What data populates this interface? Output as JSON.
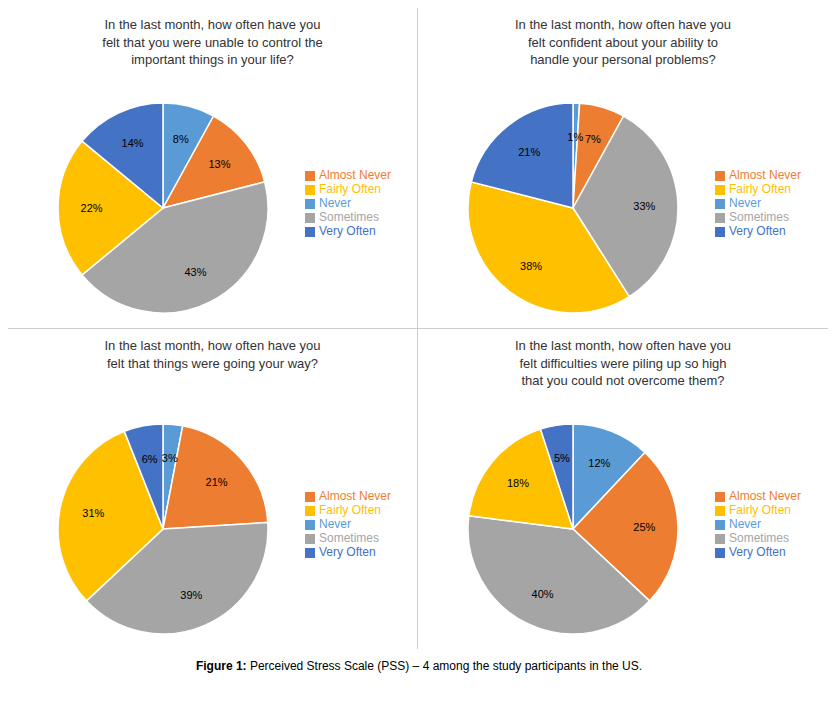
{
  "chart_data": [
    {
      "type": "pie",
      "title": "In the last month,  how often have you\nfelt that you were unable to control the\nimportant things in your life?",
      "categories": [
        "Never",
        "Almost Never",
        "Sometimes",
        "Fairly Often",
        "Very Often"
      ],
      "values": [
        8,
        13,
        43,
        22,
        14
      ],
      "value_labels": [
        "8%",
        "13%",
        "43%",
        "22%",
        "14%"
      ],
      "colors": [
        "#5B9BD5",
        "#ED7D31",
        "#A5A5A5",
        "#FFC000",
        "#4472C4"
      ],
      "data_labels": true,
      "legend": "right"
    },
    {
      "type": "pie",
      "title": "In the last month,  how often have you\nfelt confident about your ability to\nhandle your personal problems?",
      "categories": [
        "Never",
        "Almost Never",
        "Sometimes",
        "Fairly Often",
        "Very Often"
      ],
      "values": [
        1,
        7,
        33,
        38,
        21
      ],
      "value_labels": [
        "1%",
        "7%",
        "33%",
        "38%",
        "21%"
      ],
      "colors": [
        "#5B9BD5",
        "#ED7D31",
        "#A5A5A5",
        "#FFC000",
        "#4472C4"
      ],
      "data_labels": true,
      "legend": "right"
    },
    {
      "type": "pie",
      "title": "In the last month,  how often have you\nfelt that things were going your way?",
      "categories": [
        "Never",
        "Almost Never",
        "Sometimes",
        "Fairly Often",
        "Very Often"
      ],
      "values": [
        3,
        21,
        39,
        31,
        6
      ],
      "value_labels": [
        "3%",
        "21%",
        "39%",
        "31%",
        "6%"
      ],
      "colors": [
        "#5B9BD5",
        "#ED7D31",
        "#A5A5A5",
        "#FFC000",
        "#4472C4"
      ],
      "data_labels": true,
      "legend": "right"
    },
    {
      "type": "pie",
      "title": "In the last month,  how often have you\nfelt difficulties were piling up so high\nthat you could not overcome them?",
      "categories": [
        "Never",
        "Almost Never",
        "Sometimes",
        "Fairly Often",
        "Very Often"
      ],
      "values": [
        12,
        25,
        40,
        18,
        5
      ],
      "value_labels": [
        "12%",
        "25%",
        "40%",
        "18%",
        "5%"
      ],
      "colors": [
        "#5B9BD5",
        "#ED7D31",
        "#A5A5A5",
        "#FFC000",
        "#4472C4"
      ],
      "data_labels": true,
      "legend": "right"
    }
  ],
  "caption": [
    "Figure 1:",
    " Perceived Stress Scale (PSS) – 4 among the study participants in the US."
  ]
}
